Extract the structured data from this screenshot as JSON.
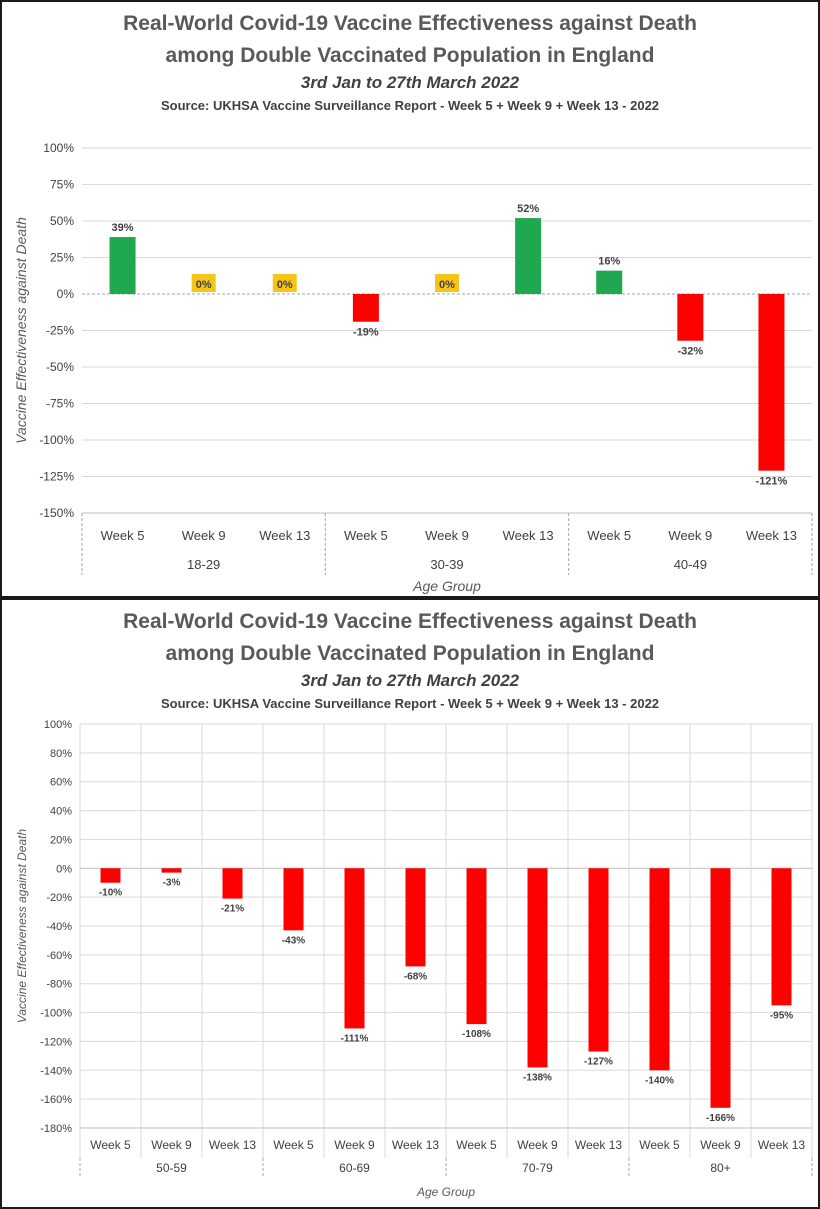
{
  "chart_data": [
    {
      "type": "bar",
      "title_line1": "Real-World Covid-19 Vaccine Effectiveness against Death",
      "title_line2": "among Double Vaccinated Population in England",
      "subtitle": "3rd Jan to 27th March 2022",
      "source": "Source: UKHSA Vaccine Surveillance Report - Week 5 + Week 9 + Week 13 - 2022",
      "ylabel": "Vaccine Effectiveness against Death",
      "xlabel": "Age Group",
      "ylim": [
        -150,
        100
      ],
      "yticks": [
        100,
        75,
        50,
        25,
        0,
        -25,
        -50,
        -75,
        -100,
        -125,
        -150
      ],
      "ytick_labels": [
        "100%",
        "75%",
        "50%",
        "25%",
        "0%",
        "-25%",
        "-50%",
        "-75%",
        "-100%",
        "-125%",
        "-150%"
      ],
      "groups": [
        {
          "name": "18-29",
          "bars": [
            {
              "label": "Week 5",
              "value": 39,
              "display": "39%",
              "color": "#1fa84f"
            },
            {
              "label": "Week 9",
              "value": 0,
              "display": "0%",
              "color": "#f5c518"
            },
            {
              "label": "Week 13",
              "value": 0,
              "display": "0%",
              "color": "#f5c518"
            }
          ]
        },
        {
          "name": "30-39",
          "bars": [
            {
              "label": "Week 5",
              "value": -19,
              "display": "-19%",
              "color": "#ff0000"
            },
            {
              "label": "Week 9",
              "value": 0,
              "display": "0%",
              "color": "#f5c518"
            },
            {
              "label": "Week 13",
              "value": 52,
              "display": "52%",
              "color": "#1fa84f"
            }
          ]
        },
        {
          "name": "40-49",
          "bars": [
            {
              "label": "Week 5",
              "value": 16,
              "display": "16%",
              "color": "#1fa84f"
            },
            {
              "label": "Week 9",
              "value": -32,
              "display": "-32%",
              "color": "#ff0000"
            },
            {
              "label": "Week 13",
              "value": -121,
              "display": "-121%",
              "color": "#ff0000"
            }
          ]
        }
      ],
      "grid": true,
      "zero_line": "dashed"
    },
    {
      "type": "bar",
      "title_line1": "Real-World Covid-19 Vaccine Effectiveness against Death",
      "title_line2": "among Double Vaccinated Population in England",
      "subtitle": "3rd Jan to 27th March 2022",
      "source": "Source: UKHSA Vaccine Surveillance Report - Week 5 + Week 9 + Week 13 - 2022",
      "ylabel": "Vaccine Effectiveness against Death",
      "xlabel": "Age Group",
      "ylim": [
        -180,
        100
      ],
      "yticks": [
        100,
        80,
        60,
        40,
        20,
        0,
        -20,
        -40,
        -60,
        -80,
        -100,
        -120,
        -140,
        -160,
        -180
      ],
      "ytick_labels": [
        "100%",
        "80%",
        "60%",
        "40%",
        "20%",
        "0%",
        "-20%",
        "-40%",
        "-60%",
        "-80%",
        "-100%",
        "-120%",
        "-140%",
        "-160%",
        "-180%"
      ],
      "groups": [
        {
          "name": "50-59",
          "bars": [
            {
              "label": "Week 5",
              "value": -10,
              "display": "-10%",
              "color": "#ff0000"
            },
            {
              "label": "Week 9",
              "value": -3,
              "display": "-3%",
              "color": "#ff0000"
            },
            {
              "label": "Week 13",
              "value": -21,
              "display": "-21%",
              "color": "#ff0000"
            }
          ]
        },
        {
          "name": "60-69",
          "bars": [
            {
              "label": "Week 5",
              "value": -43,
              "display": "-43%",
              "color": "#ff0000"
            },
            {
              "label": "Week 9",
              "value": -111,
              "display": "-111%",
              "color": "#ff0000"
            },
            {
              "label": "Week 13",
              "value": -68,
              "display": "-68%",
              "color": "#ff0000"
            }
          ]
        },
        {
          "name": "70-79",
          "bars": [
            {
              "label": "Week 5",
              "value": -108,
              "display": "-108%",
              "color": "#ff0000"
            },
            {
              "label": "Week 9",
              "value": -138,
              "display": "-138%",
              "color": "#ff0000"
            },
            {
              "label": "Week 13",
              "value": -127,
              "display": "-127%",
              "color": "#ff0000"
            }
          ]
        },
        {
          "name": "80+",
          "bars": [
            {
              "label": "Week 5",
              "value": -140,
              "display": "-140%",
              "color": "#ff0000"
            },
            {
              "label": "Week 9",
              "value": -166,
              "display": "-166%",
              "color": "#ff0000"
            },
            {
              "label": "Week 13",
              "value": -95,
              "display": "-95%",
              "color": "#ff0000"
            }
          ]
        }
      ],
      "grid": true,
      "zero_line": "solid"
    }
  ]
}
